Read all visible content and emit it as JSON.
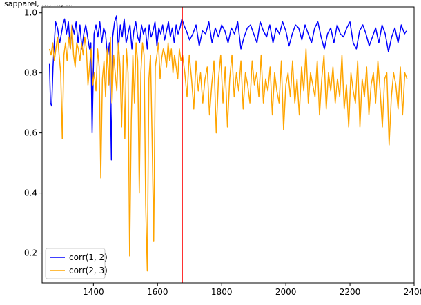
{
  "page": {
    "top_text": "sapparel, ..., ..., ..."
  },
  "chart_data": {
    "type": "line",
    "xlim": [
      1240,
      2400
    ],
    "ylim": [
      0.1,
      1.02
    ],
    "xticks": [
      1400,
      1600,
      1800,
      2000,
      2200,
      2400
    ],
    "yticks": [
      0.2,
      0.4,
      0.6,
      0.8,
      1.0
    ],
    "xtick_labels": [
      "1400",
      "1600",
      "1800",
      "2000",
      "2200",
      "2400"
    ],
    "ytick_labels": [
      "0.2",
      "0.4",
      "0.6",
      "0.8",
      "1.0"
    ],
    "grid": false,
    "legend": {
      "position": "lower-left",
      "entries": [
        {
          "name": "corr(1, 2)",
          "color": "#0000ff"
        },
        {
          "name": "corr(2, 3)",
          "color": "#ffa500"
        }
      ]
    },
    "vline": {
      "x": 1677,
      "color": "#ff0000"
    },
    "series": [
      {
        "name": "corr(1, 2)",
        "color": "#0000ff",
        "x": [
          1263,
          1266,
          1270,
          1274,
          1278,
          1282,
          1288,
          1295,
          1300,
          1305,
          1310,
          1316,
          1322,
          1328,
          1334,
          1340,
          1346,
          1352,
          1358,
          1364,
          1370,
          1376,
          1382,
          1388,
          1392,
          1396,
          1402,
          1408,
          1414,
          1420,
          1426,
          1432,
          1438,
          1444,
          1450,
          1456,
          1460,
          1466,
          1472,
          1478,
          1484,
          1490,
          1496,
          1502,
          1508,
          1514,
          1520,
          1526,
          1532,
          1538,
          1544,
          1550,
          1556,
          1562,
          1568,
          1574,
          1580,
          1586,
          1592,
          1598,
          1604,
          1610,
          1616,
          1622,
          1628,
          1634,
          1640,
          1646,
          1652,
          1658,
          1664,
          1670,
          1676,
          1682,
          1690,
          1700,
          1710,
          1720,
          1730,
          1740,
          1750,
          1760,
          1770,
          1780,
          1790,
          1800,
          1810,
          1820,
          1830,
          1840,
          1850,
          1860,
          1870,
          1880,
          1890,
          1900,
          1910,
          1920,
          1930,
          1940,
          1950,
          1960,
          1970,
          1980,
          1990,
          2000,
          2010,
          2020,
          2030,
          2040,
          2050,
          2060,
          2070,
          2080,
          2090,
          2100,
          2110,
          2120,
          2130,
          2140,
          2150,
          2160,
          2170,
          2180,
          2190,
          2200,
          2210,
          2220,
          2230,
          2240,
          2250,
          2260,
          2270,
          2280,
          2290,
          2300,
          2310,
          2320,
          2330,
          2340,
          2350,
          2360,
          2370,
          2376
        ],
        "y": [
          0.83,
          0.7,
          0.69,
          0.82,
          0.9,
          0.97,
          0.95,
          0.9,
          0.93,
          0.96,
          0.98,
          0.93,
          0.97,
          0.88,
          0.96,
          0.93,
          0.97,
          0.9,
          0.96,
          0.88,
          0.93,
          0.96,
          0.92,
          0.88,
          0.9,
          0.6,
          0.93,
          0.96,
          0.92,
          0.97,
          0.9,
          0.95,
          0.93,
          0.85,
          0.9,
          0.51,
          0.92,
          0.97,
          0.99,
          0.88,
          0.96,
          0.92,
          0.98,
          0.9,
          0.93,
          0.96,
          0.88,
          0.94,
          0.97,
          0.92,
          0.9,
          0.96,
          0.93,
          0.95,
          0.88,
          0.96,
          0.92,
          0.94,
          0.97,
          0.89,
          0.95,
          0.93,
          0.96,
          0.91,
          0.94,
          0.97,
          0.92,
          0.95,
          0.9,
          0.96,
          0.93,
          0.95,
          0.98,
          0.96,
          0.94,
          0.91,
          0.93,
          0.96,
          0.89,
          0.94,
          0.93,
          0.97,
          0.9,
          0.95,
          0.92,
          0.96,
          0.94,
          0.9,
          0.95,
          0.93,
          0.97,
          0.88,
          0.92,
          0.95,
          0.96,
          0.93,
          0.9,
          0.97,
          0.94,
          0.92,
          0.96,
          0.9,
          0.95,
          0.93,
          0.97,
          0.94,
          0.89,
          0.93,
          0.96,
          0.95,
          0.91,
          0.96,
          0.93,
          0.9,
          0.95,
          0.97,
          0.92,
          0.88,
          0.93,
          0.95,
          0.9,
          0.96,
          0.93,
          0.92,
          0.95,
          0.97,
          0.9,
          0.88,
          0.94,
          0.96,
          0.93,
          0.89,
          0.92,
          0.95,
          0.9,
          0.96,
          0.93,
          0.87,
          0.92,
          0.95,
          0.9,
          0.96,
          0.93,
          0.94
        ]
      },
      {
        "name": "corr(2, 3)",
        "color": "#ffa500",
        "x": [
          1263,
          1268,
          1273,
          1278,
          1283,
          1288,
          1293,
          1298,
          1303,
          1308,
          1313,
          1318,
          1323,
          1328,
          1333,
          1338,
          1343,
          1348,
          1353,
          1358,
          1363,
          1368,
          1373,
          1378,
          1383,
          1388,
          1393,
          1398,
          1403,
          1408,
          1413,
          1418,
          1423,
          1428,
          1433,
          1438,
          1443,
          1448,
          1453,
          1458,
          1463,
          1468,
          1473,
          1478,
          1483,
          1488,
          1493,
          1498,
          1503,
          1508,
          1513,
          1518,
          1523,
          1528,
          1533,
          1538,
          1543,
          1548,
          1553,
          1558,
          1563,
          1568,
          1573,
          1578,
          1583,
          1588,
          1593,
          1598,
          1603,
          1608,
          1613,
          1618,
          1623,
          1628,
          1633,
          1638,
          1643,
          1648,
          1653,
          1658,
          1663,
          1668,
          1673,
          1678,
          1685,
          1692,
          1699,
          1706,
          1713,
          1720,
          1727,
          1734,
          1741,
          1748,
          1755,
          1762,
          1769,
          1776,
          1783,
          1790,
          1797,
          1804,
          1811,
          1818,
          1825,
          1832,
          1839,
          1846,
          1853,
          1860,
          1867,
          1874,
          1881,
          1888,
          1895,
          1902,
          1909,
          1916,
          1923,
          1930,
          1937,
          1944,
          1951,
          1958,
          1965,
          1972,
          1979,
          1986,
          1993,
          2000,
          2007,
          2014,
          2021,
          2028,
          2035,
          2042,
          2049,
          2056,
          2063,
          2070,
          2077,
          2084,
          2091,
          2098,
          2105,
          2112,
          2119,
          2126,
          2133,
          2140,
          2147,
          2154,
          2161,
          2168,
          2175,
          2182,
          2189,
          2196,
          2203,
          2210,
          2217,
          2224,
          2231,
          2238,
          2245,
          2252,
          2259,
          2266,
          2273,
          2280,
          2287,
          2294,
          2301,
          2308,
          2315,
          2322,
          2329,
          2336,
          2343,
          2350,
          2357,
          2364,
          2371,
          2378
        ],
        "y": [
          0.88,
          0.86,
          0.9,
          0.84,
          0.88,
          0.92,
          0.86,
          0.8,
          0.58,
          0.86,
          0.9,
          0.84,
          0.92,
          0.88,
          0.96,
          0.86,
          0.82,
          0.9,
          0.88,
          0.84,
          0.9,
          0.86,
          0.92,
          0.88,
          0.76,
          0.82,
          0.88,
          0.76,
          0.8,
          0.74,
          0.88,
          0.82,
          0.45,
          0.78,
          0.84,
          0.72,
          0.88,
          0.76,
          0.92,
          0.7,
          0.86,
          0.8,
          0.74,
          0.9,
          0.82,
          0.62,
          0.86,
          0.58,
          0.88,
          0.8,
          0.19,
          0.64,
          0.86,
          0.7,
          0.9,
          0.84,
          0.4,
          0.8,
          0.9,
          0.86,
          0.36,
          0.14,
          0.78,
          0.86,
          0.58,
          0.24,
          0.82,
          0.86,
          0.9,
          0.78,
          0.85,
          0.88,
          0.86,
          0.82,
          0.9,
          0.84,
          0.88,
          0.8,
          0.86,
          0.82,
          0.78,
          0.88,
          0.84,
          0.86,
          0.8,
          0.72,
          0.86,
          0.78,
          0.68,
          0.84,
          0.74,
          0.8,
          0.7,
          0.78,
          0.82,
          0.66,
          0.76,
          0.84,
          0.6,
          0.78,
          0.86,
          0.7,
          0.82,
          0.62,
          0.78,
          0.86,
          0.72,
          0.8,
          0.74,
          0.84,
          0.68,
          0.8,
          0.76,
          0.7,
          0.84,
          0.76,
          0.8,
          0.72,
          0.86,
          0.7,
          0.78,
          0.74,
          0.82,
          0.66,
          0.8,
          0.74,
          0.7,
          0.84,
          0.61,
          0.76,
          0.8,
          0.72,
          0.84,
          0.7,
          0.78,
          0.66,
          0.82,
          0.74,
          0.88,
          0.7,
          0.8,
          0.76,
          0.72,
          0.84,
          0.66,
          0.78,
          0.86,
          0.68,
          0.8,
          0.74,
          0.82,
          0.7,
          0.78,
          0.72,
          0.86,
          0.68,
          0.76,
          0.62,
          0.8,
          0.74,
          0.7,
          0.84,
          0.62,
          0.78,
          0.72,
          0.82,
          0.66,
          0.76,
          0.8,
          0.7,
          0.84,
          0.74,
          0.62,
          0.78,
          0.8,
          0.56,
          0.72,
          0.8,
          0.76,
          0.68,
          0.82,
          0.66,
          0.8,
          0.78
        ]
      }
    ]
  }
}
